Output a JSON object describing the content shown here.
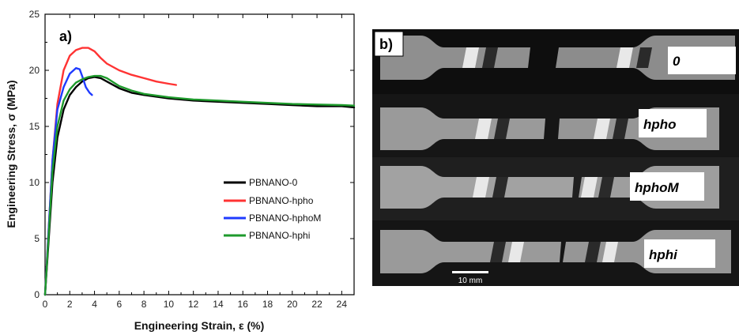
{
  "panel_a_label": "a)",
  "panel_b_label": "b)",
  "chart_data": {
    "type": "line",
    "xlabel": "Engineering Strain, ε (%)",
    "ylabel": "Engineering Stress, σ (MPa)",
    "xlim": [
      0,
      25
    ],
    "ylim": [
      0,
      25
    ],
    "xticks": [
      0,
      2,
      4,
      6,
      8,
      10,
      12,
      14,
      16,
      18,
      20,
      22,
      24
    ],
    "yticks": [
      0,
      5,
      10,
      15,
      20,
      25
    ],
    "grid": false,
    "legend_position": "lower-right",
    "series": [
      {
        "name": "PBNANO-0",
        "color": "#000000",
        "x": [
          0,
          0.3,
          0.6,
          1.0,
          1.5,
          2.0,
          2.5,
          3.0,
          3.5,
          4.0,
          4.5,
          5.0,
          6.0,
          7.0,
          8.0,
          10.0,
          12.0,
          14.0,
          16.0,
          18.0,
          20.0,
          22.0,
          24.0,
          25.0
        ],
        "y": [
          0,
          5,
          10,
          14,
          16.5,
          17.8,
          18.5,
          19.0,
          19.3,
          19.4,
          19.3,
          19.0,
          18.4,
          18.0,
          17.8,
          17.5,
          17.3,
          17.2,
          17.1,
          17.0,
          16.9,
          16.8,
          16.8,
          16.7
        ]
      },
      {
        "name": "PBNANO-hpho",
        "color": "#ff3333",
        "x": [
          0,
          0.3,
          0.6,
          1.0,
          1.5,
          2.0,
          2.5,
          3.0,
          3.5,
          4.0,
          4.5,
          5.0,
          6.0,
          7.0,
          8.0,
          9.0,
          10.0,
          10.6
        ],
        "y": [
          0,
          6,
          12,
          17,
          20,
          21.3,
          21.8,
          22.0,
          22.0,
          21.7,
          21.1,
          20.6,
          20.0,
          19.6,
          19.3,
          19.0,
          18.8,
          18.7
        ]
      },
      {
        "name": "PBNANO-hphoM",
        "color": "#1f3bff",
        "x": [
          0,
          0.3,
          0.6,
          1.0,
          1.5,
          2.0,
          2.5,
          2.8,
          3.0,
          3.3,
          3.6,
          3.8
        ],
        "y": [
          0,
          6,
          12,
          16.5,
          18.5,
          19.7,
          20.2,
          20.1,
          19.5,
          18.5,
          18.0,
          17.8
        ]
      },
      {
        "name": "PBNANO-hphi",
        "color": "#1e9a2c",
        "x": [
          0,
          0.3,
          0.6,
          1.0,
          1.5,
          2.0,
          2.5,
          3.0,
          3.5,
          4.0,
          4.5,
          5.0,
          6.0,
          7.0,
          8.0,
          10.0,
          12.0,
          14.0,
          16.0,
          18.0,
          20.0,
          22.0,
          24.0,
          25.0
        ],
        "y": [
          0,
          5.5,
          11,
          15,
          17.3,
          18.3,
          18.9,
          19.2,
          19.4,
          19.5,
          19.5,
          19.3,
          18.6,
          18.2,
          17.9,
          17.6,
          17.4,
          17.3,
          17.2,
          17.1,
          17.0,
          16.95,
          16.9,
          16.85
        ]
      }
    ]
  },
  "photo_panel": {
    "samples": [
      "0",
      "hpho",
      "hphoM",
      "hphi"
    ],
    "scale_bar_label": "10 mm"
  }
}
